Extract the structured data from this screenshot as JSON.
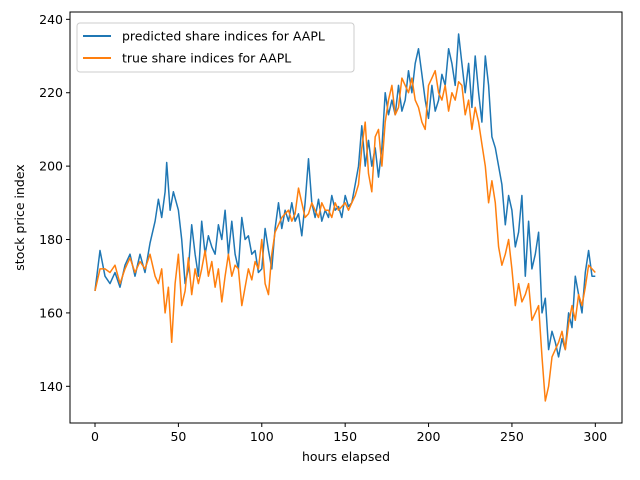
{
  "chart_data": {
    "type": "line",
    "xlabel": "hours elapsed",
    "ylabel": "stock price index",
    "xlim": [
      -15,
      316
    ],
    "ylim": [
      130,
      242
    ],
    "xticks": [
      0,
      50,
      100,
      150,
      200,
      250,
      300
    ],
    "yticks": [
      140,
      160,
      180,
      200,
      220,
      240
    ],
    "grid": false,
    "legend_position": "top-left",
    "series": [
      {
        "name": "predicted share indices for AAPL",
        "color": "#1f77b4",
        "points": [
          [
            0,
            166
          ],
          [
            3,
            177
          ],
          [
            6,
            170
          ],
          [
            9,
            168
          ],
          [
            12,
            171
          ],
          [
            15,
            167
          ],
          [
            18,
            173
          ],
          [
            21,
            176
          ],
          [
            24,
            170
          ],
          [
            27,
            176
          ],
          [
            30,
            171
          ],
          [
            33,
            179
          ],
          [
            36,
            185
          ],
          [
            38,
            191
          ],
          [
            40,
            186
          ],
          [
            42,
            193
          ],
          [
            43,
            201
          ],
          [
            45,
            188
          ],
          [
            47,
            193
          ],
          [
            50,
            188
          ],
          [
            52,
            180
          ],
          [
            54,
            168
          ],
          [
            56,
            172
          ],
          [
            58,
            184
          ],
          [
            60,
            176
          ],
          [
            62,
            170
          ],
          [
            64,
            185
          ],
          [
            66,
            176
          ],
          [
            68,
            181
          ],
          [
            70,
            178
          ],
          [
            72,
            176
          ],
          [
            74,
            184
          ],
          [
            76,
            180
          ],
          [
            78,
            188
          ],
          [
            80,
            176
          ],
          [
            82,
            185
          ],
          [
            84,
            176
          ],
          [
            86,
            172
          ],
          [
            88,
            186
          ],
          [
            90,
            180
          ],
          [
            92,
            181
          ],
          [
            94,
            176
          ],
          [
            96,
            177
          ],
          [
            98,
            171
          ],
          [
            100,
            172
          ],
          [
            102,
            183
          ],
          [
            104,
            177
          ],
          [
            106,
            172
          ],
          [
            108,
            183
          ],
          [
            110,
            190
          ],
          [
            112,
            183
          ],
          [
            114,
            188
          ],
          [
            116,
            185
          ],
          [
            118,
            190
          ],
          [
            120,
            185
          ],
          [
            122,
            187
          ],
          [
            124,
            181
          ],
          [
            126,
            190
          ],
          [
            128,
            202
          ],
          [
            130,
            190
          ],
          [
            132,
            186
          ],
          [
            134,
            191
          ],
          [
            136,
            185
          ],
          [
            138,
            188
          ],
          [
            140,
            186
          ],
          [
            142,
            192
          ],
          [
            144,
            188
          ],
          [
            146,
            189
          ],
          [
            148,
            186
          ],
          [
            150,
            192
          ],
          [
            152,
            189
          ],
          [
            154,
            190
          ],
          [
            156,
            195
          ],
          [
            158,
            200
          ],
          [
            160,
            211
          ],
          [
            162,
            200
          ],
          [
            164,
            207
          ],
          [
            166,
            200
          ],
          [
            168,
            205
          ],
          [
            170,
            197
          ],
          [
            172,
            205
          ],
          [
            174,
            220
          ],
          [
            176,
            214
          ],
          [
            178,
            218
          ],
          [
            180,
            214
          ],
          [
            182,
            222
          ],
          [
            184,
            215
          ],
          [
            186,
            218
          ],
          [
            188,
            226
          ],
          [
            190,
            220
          ],
          [
            192,
            228
          ],
          [
            194,
            232
          ],
          [
            196,
            225
          ],
          [
            198,
            218
          ],
          [
            200,
            213
          ],
          [
            202,
            222
          ],
          [
            204,
            215
          ],
          [
            206,
            218
          ],
          [
            208,
            225
          ],
          [
            210,
            222
          ],
          [
            212,
            232
          ],
          [
            214,
            228
          ],
          [
            216,
            222
          ],
          [
            218,
            236
          ],
          [
            220,
            228
          ],
          [
            222,
            220
          ],
          [
            224,
            228
          ],
          [
            226,
            216
          ],
          [
            228,
            230
          ],
          [
            230,
            220
          ],
          [
            232,
            212
          ],
          [
            234,
            230
          ],
          [
            236,
            222
          ],
          [
            238,
            208
          ],
          [
            240,
            205
          ],
          [
            242,
            200
          ],
          [
            244,
            195
          ],
          [
            246,
            184
          ],
          [
            248,
            192
          ],
          [
            250,
            188
          ],
          [
            252,
            178
          ],
          [
            254,
            182
          ],
          [
            256,
            192
          ],
          [
            258,
            170
          ],
          [
            260,
            185
          ],
          [
            262,
            172
          ],
          [
            264,
            176
          ],
          [
            266,
            182
          ],
          [
            268,
            160
          ],
          [
            270,
            164
          ],
          [
            272,
            150
          ],
          [
            274,
            155
          ],
          [
            276,
            152
          ],
          [
            278,
            148
          ],
          [
            280,
            153
          ],
          [
            282,
            150
          ],
          [
            284,
            160
          ],
          [
            286,
            156
          ],
          [
            288,
            170
          ],
          [
            290,
            165
          ],
          [
            292,
            160
          ],
          [
            294,
            171
          ],
          [
            296,
            177
          ],
          [
            298,
            170
          ],
          [
            300,
            170
          ]
        ]
      },
      {
        "name": "true share indices for AAPL",
        "color": "#ff7f0e",
        "points": [
          [
            0,
            166
          ],
          [
            3,
            172
          ],
          [
            6,
            172
          ],
          [
            9,
            171
          ],
          [
            12,
            173
          ],
          [
            15,
            168
          ],
          [
            18,
            172
          ],
          [
            21,
            175
          ],
          [
            24,
            171
          ],
          [
            27,
            174
          ],
          [
            30,
            172
          ],
          [
            33,
            176
          ],
          [
            36,
            170
          ],
          [
            38,
            168
          ],
          [
            40,
            172
          ],
          [
            42,
            160
          ],
          [
            44,
            167
          ],
          [
            46,
            152
          ],
          [
            48,
            168
          ],
          [
            50,
            176
          ],
          [
            52,
            162
          ],
          [
            54,
            166
          ],
          [
            56,
            175
          ],
          [
            58,
            165
          ],
          [
            60,
            172
          ],
          [
            62,
            168
          ],
          [
            64,
            172
          ],
          [
            66,
            177
          ],
          [
            68,
            170
          ],
          [
            70,
            174
          ],
          [
            72,
            167
          ],
          [
            74,
            172
          ],
          [
            76,
            163
          ],
          [
            78,
            170
          ],
          [
            80,
            176
          ],
          [
            82,
            170
          ],
          [
            84,
            173
          ],
          [
            86,
            172
          ],
          [
            88,
            162
          ],
          [
            90,
            167
          ],
          [
            92,
            172
          ],
          [
            94,
            169
          ],
          [
            96,
            174
          ],
          [
            98,
            172
          ],
          [
            100,
            180
          ],
          [
            102,
            168
          ],
          [
            104,
            165
          ],
          [
            106,
            176
          ],
          [
            108,
            182
          ],
          [
            110,
            184
          ],
          [
            112,
            186
          ],
          [
            114,
            187
          ],
          [
            116,
            188
          ],
          [
            118,
            185
          ],
          [
            120,
            187
          ],
          [
            122,
            194
          ],
          [
            124,
            190
          ],
          [
            126,
            186
          ],
          [
            128,
            187
          ],
          [
            130,
            190
          ],
          [
            132,
            188
          ],
          [
            134,
            186
          ],
          [
            136,
            190
          ],
          [
            138,
            188
          ],
          [
            140,
            188
          ],
          [
            142,
            186
          ],
          [
            144,
            190
          ],
          [
            146,
            188
          ],
          [
            148,
            189
          ],
          [
            150,
            190
          ],
          [
            152,
            188
          ],
          [
            154,
            190
          ],
          [
            156,
            192
          ],
          [
            158,
            195
          ],
          [
            160,
            205
          ],
          [
            162,
            212
          ],
          [
            164,
            198
          ],
          [
            166,
            193
          ],
          [
            168,
            208
          ],
          [
            170,
            210
          ],
          [
            172,
            200
          ],
          [
            174,
            212
          ],
          [
            176,
            218
          ],
          [
            178,
            222
          ],
          [
            180,
            214
          ],
          [
            182,
            216
          ],
          [
            184,
            224
          ],
          [
            186,
            222
          ],
          [
            188,
            220
          ],
          [
            190,
            224
          ],
          [
            192,
            218
          ],
          [
            194,
            216
          ],
          [
            196,
            212
          ],
          [
            198,
            210
          ],
          [
            200,
            222
          ],
          [
            202,
            224
          ],
          [
            204,
            226
          ],
          [
            206,
            220
          ],
          [
            208,
            218
          ],
          [
            210,
            222
          ],
          [
            212,
            215
          ],
          [
            214,
            220
          ],
          [
            216,
            218
          ],
          [
            218,
            223
          ],
          [
            220,
            222
          ],
          [
            222,
            214
          ],
          [
            224,
            218
          ],
          [
            226,
            210
          ],
          [
            228,
            216
          ],
          [
            230,
            212
          ],
          [
            232,
            206
          ],
          [
            234,
            200
          ],
          [
            236,
            190
          ],
          [
            238,
            196
          ],
          [
            240,
            190
          ],
          [
            242,
            178
          ],
          [
            244,
            173
          ],
          [
            246,
            176
          ],
          [
            248,
            180
          ],
          [
            250,
            172
          ],
          [
            252,
            162
          ],
          [
            254,
            168
          ],
          [
            256,
            163
          ],
          [
            258,
            165
          ],
          [
            260,
            168
          ],
          [
            262,
            158
          ],
          [
            264,
            160
          ],
          [
            266,
            162
          ],
          [
            268,
            148
          ],
          [
            270,
            136
          ],
          [
            272,
            140
          ],
          [
            274,
            148
          ],
          [
            276,
            150
          ],
          [
            278,
            152
          ],
          [
            280,
            155
          ],
          [
            282,
            150
          ],
          [
            284,
            157
          ],
          [
            286,
            162
          ],
          [
            288,
            158
          ],
          [
            290,
            165
          ],
          [
            292,
            162
          ],
          [
            294,
            167
          ],
          [
            296,
            173
          ],
          [
            298,
            172
          ],
          [
            300,
            171
          ]
        ]
      }
    ]
  }
}
